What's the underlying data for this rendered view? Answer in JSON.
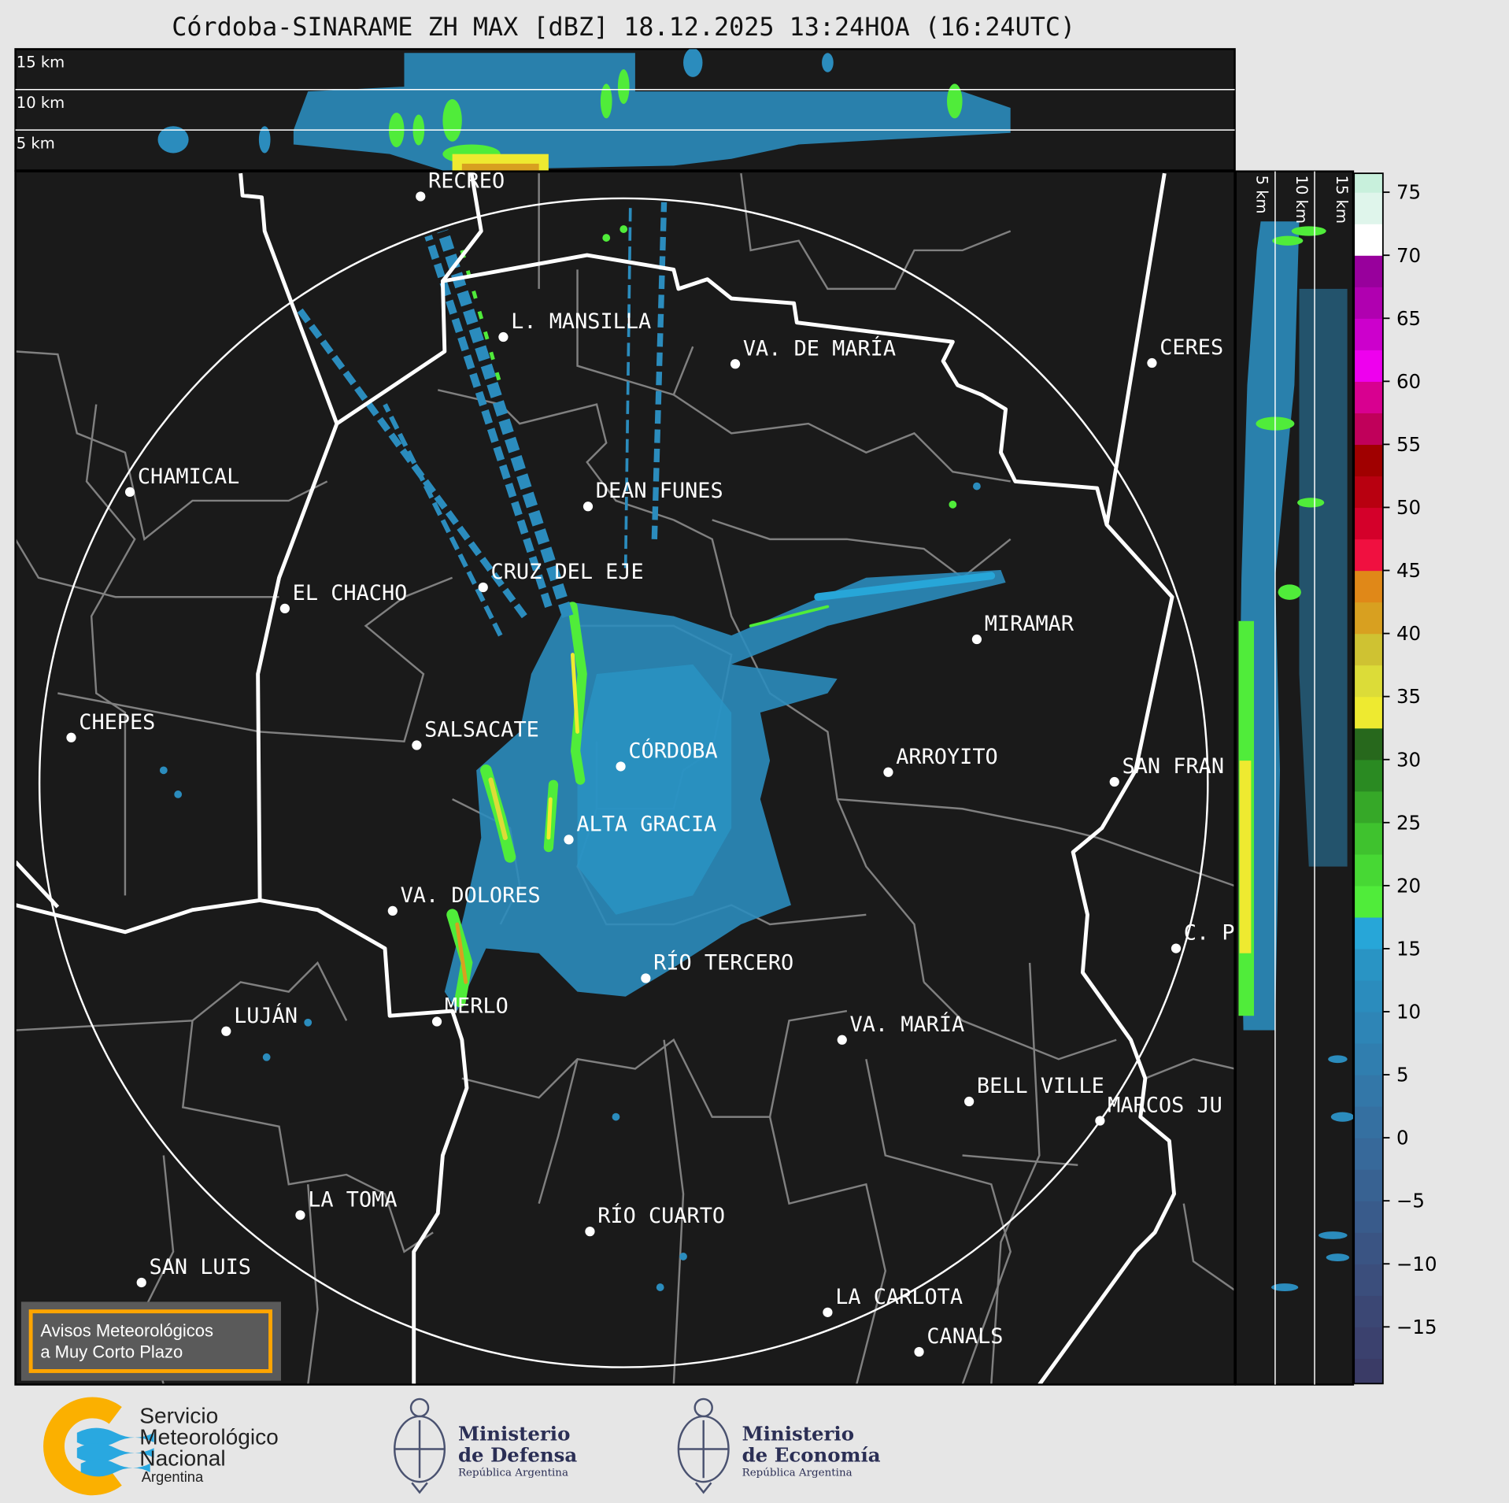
{
  "title": "Córdoba-SINARAME ZH MAX [dBZ] 18.12.2025 13:24HOA (16:24UTC)",
  "top_panel": {
    "height_labels": [
      "15 km",
      "10 km",
      "5 km"
    ]
  },
  "side_panel": {
    "height_labels": [
      "5 km",
      "10 km",
      "15 km"
    ]
  },
  "cities": [
    "RECREO",
    "L. MANSILLA",
    "VA. DE MARÍA",
    "CERES",
    "CHAMICAL",
    "DEAN FUNES",
    "CRUZ DEL EJE",
    "EL CHACHO",
    "MIRAMAR",
    "CHEPES",
    "SALSACATE",
    "CÓRDOBA",
    "ARROYITO",
    "SAN FRAN",
    "ALTA GRACIA",
    "VA. DOLORES",
    "C. P",
    "RÍO TERCERO",
    "LUJÁN",
    "MERLO",
    "VA. MARÍA",
    "BELL VILLE",
    "MARCOS JU",
    "LA TOMA",
    "RÍO CUARTO",
    "SAN LUIS",
    "LA CARLOTA",
    "CANALS"
  ],
  "notice_box": {
    "line1": "Avisos Meteorológicos",
    "line2": "a Muy Corto Plazo",
    "border_color": "#ffa500"
  },
  "colorbar": {
    "unit": "dBZ",
    "range": [
      -19.5,
      76.5
    ],
    "ticks": [
      75,
      70,
      65,
      60,
      55,
      50,
      45,
      40,
      35,
      30,
      25,
      20,
      15,
      10,
      5,
      0,
      -5,
      -10,
      -15
    ],
    "tick_labels": [
      "75",
      "70",
      "65",
      "60",
      "55",
      "50",
      "45",
      "40",
      "35",
      "30",
      "25",
      "20",
      "15",
      "10",
      "5",
      "0",
      "−5",
      "−10",
      "−15"
    ],
    "bands": [
      {
        "from": -19.5,
        "to": -17.5,
        "color": "#3a3b66"
      },
      {
        "from": -17.5,
        "to": -15,
        "color": "#3b416e"
      },
      {
        "from": -15,
        "to": -12.5,
        "color": "#3b4774"
      },
      {
        "from": -12.5,
        "to": -10,
        "color": "#3b4e7c"
      },
      {
        "from": -10,
        "to": -7.5,
        "color": "#3a5483"
      },
      {
        "from": -7.5,
        "to": -5,
        "color": "#395b8b"
      },
      {
        "from": -5,
        "to": -2.5,
        "color": "#386292"
      },
      {
        "from": -2.5,
        "to": 0,
        "color": "#37699a"
      },
      {
        "from": 0,
        "to": 2.5,
        "color": "#3570a1"
      },
      {
        "from": 2.5,
        "to": 5,
        "color": "#3377a8"
      },
      {
        "from": 5,
        "to": 7.5,
        "color": "#307eaf"
      },
      {
        "from": 7.5,
        "to": 10,
        "color": "#2e85b6"
      },
      {
        "from": 10,
        "to": 12.5,
        "color": "#2b8cbd"
      },
      {
        "from": 12.5,
        "to": 15,
        "color": "#2994c4"
      },
      {
        "from": 15,
        "to": 17.5,
        "color": "#27a6d8"
      },
      {
        "from": 17.5,
        "to": 20,
        "color": "#50ec3a"
      },
      {
        "from": 20,
        "to": 22.5,
        "color": "#47d834"
      },
      {
        "from": 22.5,
        "to": 25,
        "color": "#3fc22e"
      },
      {
        "from": 25,
        "to": 27.5,
        "color": "#36a828"
      },
      {
        "from": 27.5,
        "to": 30,
        "color": "#2a8a22"
      },
      {
        "from": 30,
        "to": 32.5,
        "color": "#27681c"
      },
      {
        "from": 32.5,
        "to": 35,
        "color": "#eeea30"
      },
      {
        "from": 35,
        "to": 37.5,
        "color": "#dcdc38"
      },
      {
        "from": 37.5,
        "to": 40,
        "color": "#cfc232"
      },
      {
        "from": 40,
        "to": 42.5,
        "color": "#d8a020"
      },
      {
        "from": 42.5,
        "to": 45,
        "color": "#e08818"
      },
      {
        "from": 45,
        "to": 47.5,
        "color": "#f01040"
      },
      {
        "from": 47.5,
        "to": 50,
        "color": "#d4002a"
      },
      {
        "from": 50,
        "to": 52.5,
        "color": "#b80010"
      },
      {
        "from": 52.5,
        "to": 55,
        "color": "#a00000"
      },
      {
        "from": 55,
        "to": 57.5,
        "color": "#c0005a"
      },
      {
        "from": 57.5,
        "to": 60,
        "color": "#d80090"
      },
      {
        "from": 60,
        "to": 62.5,
        "color": "#ee00ee"
      },
      {
        "from": 62.5,
        "to": 65,
        "color": "#cc00cc"
      },
      {
        "from": 65,
        "to": 67.5,
        "color": "#b000b0"
      },
      {
        "from": 67.5,
        "to": 70,
        "color": "#98009c"
      },
      {
        "from": 70,
        "to": 72.5,
        "color": "#ffffff"
      },
      {
        "from": 72.5,
        "to": 75,
        "color": "#dff5eb"
      },
      {
        "from": 75,
        "to": 76.5,
        "color": "#c8f0dc"
      }
    ]
  },
  "logos": {
    "smn": {
      "line1": "Servicio",
      "line2": "Meteorológico",
      "line3": "Nacional",
      "line4": "Argentina",
      "yellow": "#fbb000",
      "blue": "#29a8e0"
    },
    "defensa": {
      "line1": "Ministerio",
      "line2": "de Defensa",
      "line3": "República Argentina"
    },
    "economia": {
      "line1": "Ministerio",
      "line2": "de Economía",
      "line3": "República Argentina"
    }
  },
  "colors": {
    "background": "#e6e6e6",
    "map": "#1a1a1a",
    "province_border": "#ffffff",
    "department_border": "#808080",
    "echo": "#2b8cbd"
  }
}
